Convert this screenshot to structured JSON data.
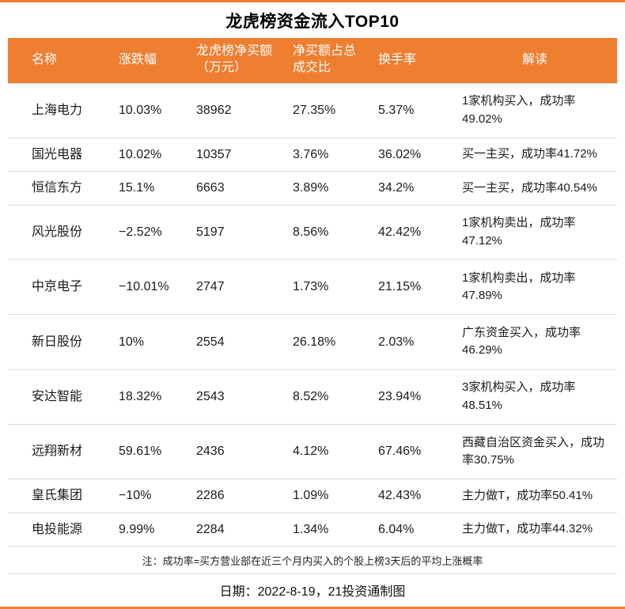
{
  "title": "龙虎榜资金流入TOP10",
  "accent_color": "#ee7e30",
  "chart_data": {
    "type": "table",
    "title": "龙虎榜资金流入TOP10",
    "headers": [
      "名称",
      "涨跌幅",
      "龙虎榜净买额（万元）",
      "净买额占总成交比",
      "换手率",
      "解读"
    ],
    "rows": [
      [
        "上海电力",
        "10.03%",
        "38962",
        "27.35%",
        "5.37%",
        "1家机构买入，成功率49.02%"
      ],
      [
        "国光电器",
        "10.02%",
        "10357",
        "3.76%",
        "36.02%",
        "买一主买，成功率41.72%"
      ],
      [
        "恒信东方",
        "15.1%",
        "6663",
        "3.89%",
        "34.2%",
        "买一主买，成功率40.54%"
      ],
      [
        "风光股份",
        "−2.52%",
        "5197",
        "8.56%",
        "42.42%",
        "1家机构卖出，成功率47.12%"
      ],
      [
        "中京电子",
        "−10.01%",
        "2747",
        "1.73%",
        "21.15%",
        "1家机构卖出，成功率47.89%"
      ],
      [
        "新日股份",
        "10%",
        "2554",
        "26.18%",
        "2.03%",
        "广东资金买入，成功率46.29%"
      ],
      [
        "安达智能",
        "18.32%",
        "2543",
        "8.52%",
        "23.94%",
        "3家机构买入，成功率48.51%"
      ],
      [
        "远翔新材",
        "59.61%",
        "2436",
        "4.12%",
        "67.46%",
        "西藏自治区资金买入，成功率30.75%"
      ],
      [
        "皇氏集团",
        "−10%",
        "2286",
        "1.09%",
        "42.43%",
        "主力做T，成功率50.41%"
      ],
      [
        "电投能源",
        "9.99%",
        "2284",
        "1.34%",
        "6.04%",
        "主力做T，成功率44.32%"
      ]
    ]
  },
  "footer": {
    "note": "注：成功率=买方营业部在近三个月内买入的个股上榜3天后的平均上涨概率",
    "date": "日期：2022-8-19，21投资通制图"
  }
}
